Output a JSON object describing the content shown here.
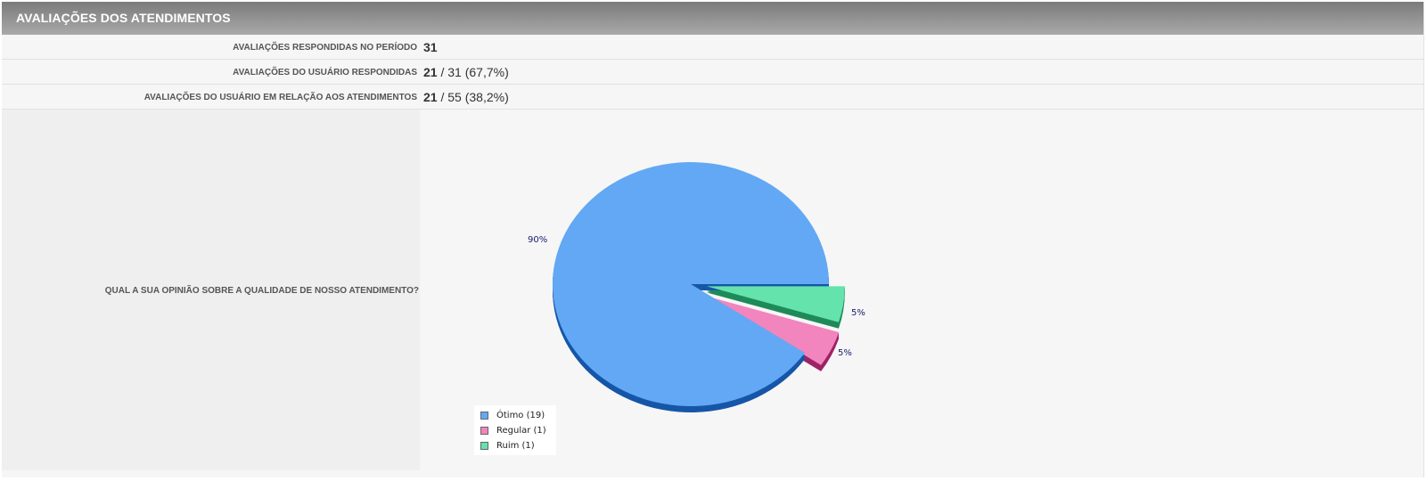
{
  "panel": {
    "title": "AVALIAÇÕES DOS ATENDIMENTOS"
  },
  "stats": [
    {
      "label": "AVALIAÇÕES RESPONDIDAS NO PERÍODO",
      "bold": "31",
      "rest": ""
    },
    {
      "label": "AVALIAÇÕES DO USUÁRIO RESPONDIDAS",
      "bold": "21",
      "rest": " / 31 (67,7%)"
    },
    {
      "label": "AVALIAÇÕES DO USUÁRIO EM RELAÇÃO AOS ATENDIMENTOS",
      "bold": "21",
      "rest": " / 55 (38,2%)"
    }
  ],
  "question": {
    "label": "QUAL A SUA OPINIÃO SOBRE A QUALIDADE DE NOSSO ATENDIMENTO?"
  },
  "chart_data": {
    "type": "pie",
    "categories": [
      "Ótimo",
      "Regular",
      "Ruim"
    ],
    "values": [
      19,
      1,
      1
    ],
    "percent_labels": [
      "90%",
      "5%",
      "5%"
    ],
    "legend": [
      "Ótimo (19)",
      "Regular (1)",
      "Ruim (1)"
    ],
    "colors": [
      "#62a8f4",
      "#f285bd",
      "#64e3ac"
    ],
    "shadow_colors": [
      "#1656a8",
      "#9d2366",
      "#1f8a5a"
    ],
    "legend_position": "bottom-left"
  }
}
